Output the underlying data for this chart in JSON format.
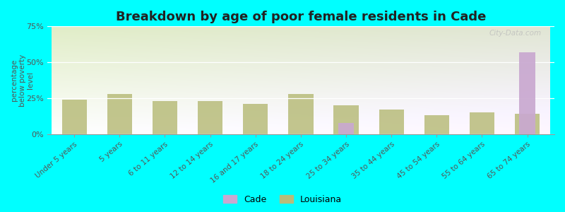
{
  "title": "Breakdown by age of poor female residents in Cade",
  "ylabel": "percentage\nbelow poverty\nlevel",
  "background_color": "#00FFFF",
  "categories": [
    "Under 5 years",
    "5 years",
    "6 to 11 years",
    "12 to 14 years",
    "16 and 17 years",
    "18 to 24 years",
    "25 to 34 years",
    "35 to 44 years",
    "45 to 54 years",
    "55 to 64 years",
    "65 to 74 years"
  ],
  "cade_values": [
    0,
    0,
    0,
    0,
    0,
    0,
    8,
    0,
    0,
    0,
    57
  ],
  "louisiana_values": [
    24,
    28,
    23,
    23,
    21,
    28,
    20,
    17,
    13,
    15,
    14
  ],
  "cade_color": "#c9a8d0",
  "louisiana_color": "#b8bc7a",
  "ylim": [
    0,
    75
  ],
  "yticks": [
    0,
    25,
    50,
    75
  ],
  "ytick_labels": [
    "0%",
    "25%",
    "50%",
    "75%"
  ],
  "watermark": "City-Data.com",
  "legend_labels": [
    "Cade",
    "Louisiana"
  ],
  "bar_width": 0.55,
  "title_fontsize": 13
}
